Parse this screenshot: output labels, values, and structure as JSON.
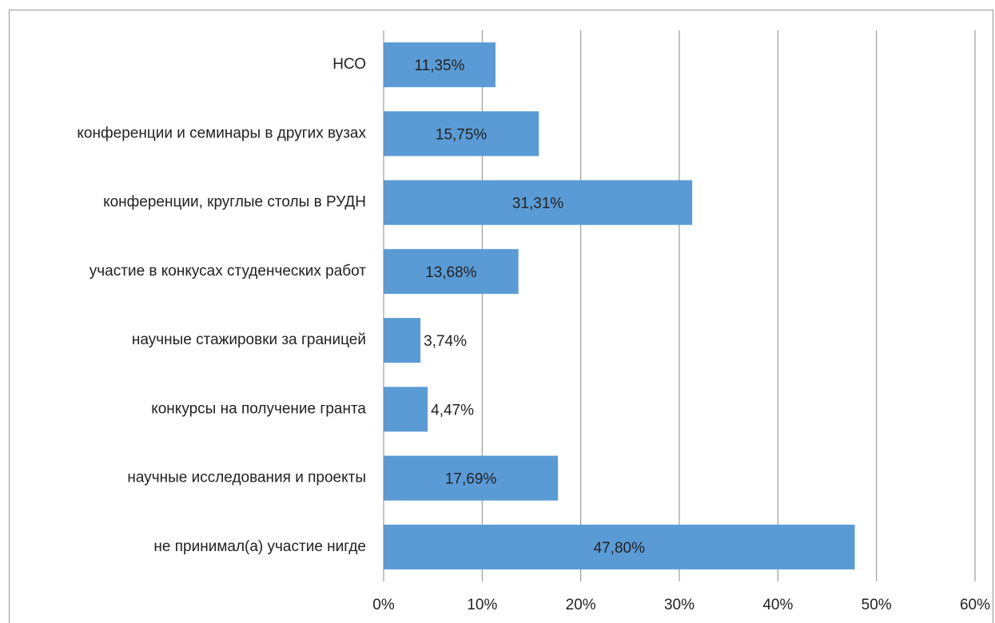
{
  "chart_data": {
    "type": "barh",
    "categories": [
      "НСО",
      "конференции и семинары в других вузах",
      "конференции, круглые столы в РУДН",
      "участие в конкусах студенческих работ",
      "научные стажировки за границей",
      "конкурсы на получение гранта",
      "научные исследования и проекты",
      "не принимал(а) участие нигде"
    ],
    "values": [
      11.35,
      15.75,
      31.31,
      13.68,
      3.74,
      4.47,
      17.69,
      47.8
    ],
    "value_labels": [
      "11,35%",
      "15,75%",
      "31,31%",
      "13,68%",
      "3,74%",
      "4,47%",
      "17,69%",
      "47,80%"
    ],
    "color": "#5b9bd5",
    "xlim": [
      0,
      60
    ],
    "xticks": [
      {
        "value": 0,
        "label": "0%"
      },
      {
        "value": 10,
        "label": "10%"
      },
      {
        "value": 20,
        "label": "20%"
      },
      {
        "value": 30,
        "label": "30%"
      },
      {
        "value": 40,
        "label": "40%"
      },
      {
        "value": 50,
        "label": "50%"
      },
      {
        "value": 60,
        "label": "60%"
      }
    ],
    "grid": true
  }
}
